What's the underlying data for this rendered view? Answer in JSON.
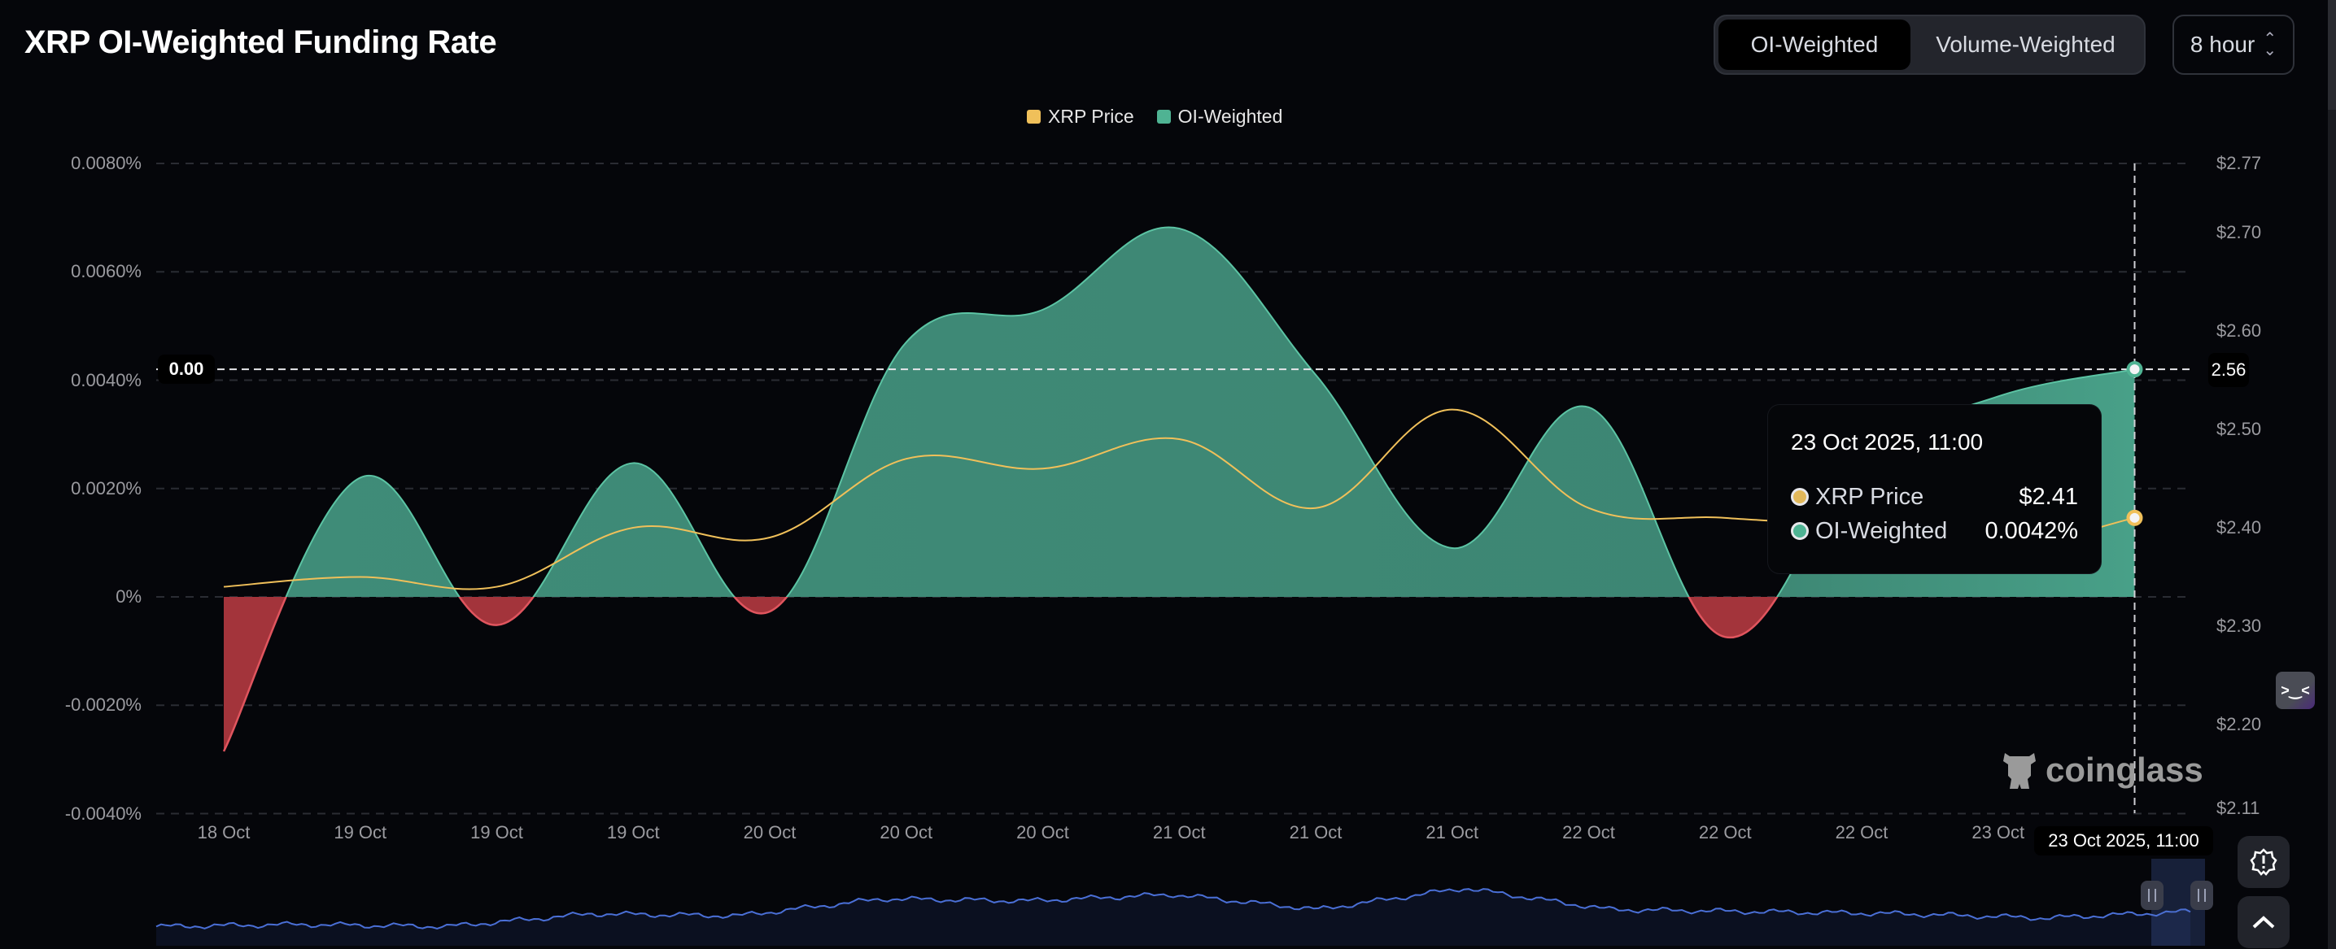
{
  "header": {
    "title": "XRP OI-Weighted Funding Rate"
  },
  "toggle": {
    "options": [
      "OI-Weighted",
      "Volume-Weighted"
    ],
    "selected": "OI-Weighted"
  },
  "interval": {
    "value": "8 hour",
    "icon": "chevron-up-down-icon"
  },
  "colors": {
    "price": "#f0c05a",
    "positive": "#4fb393",
    "negative": "#c5414a",
    "navigator": "#4a6fd6"
  },
  "chart_data": {
    "type": "area",
    "legend": [
      "XRP Price",
      "OI-Weighted"
    ],
    "legend_position": "top-center",
    "grid": true,
    "x": [
      "18 Oct",
      "19 Oct",
      "19 Oct",
      "19 Oct",
      "20 Oct",
      "20 Oct",
      "20 Oct",
      "21 Oct",
      "21 Oct",
      "21 Oct",
      "22 Oct",
      "22 Oct",
      "22 Oct",
      "23 Oct",
      "23 Oct 2025, 11:00"
    ],
    "x_tick_labels": [
      "18 Oct",
      "19 Oct",
      "19 Oct",
      "19 Oct",
      "20 Oct",
      "20 Oct",
      "20 Oct",
      "21 Oct",
      "21 Oct",
      "21 Oct",
      "22 Oct",
      "22 Oct",
      "22 Oct",
      "23 Oct"
    ],
    "series": [
      {
        "name": "OI-Weighted",
        "axis": "left",
        "unit": "%",
        "values": [
          -0.00285,
          0.0022,
          -0.00052,
          0.00247,
          -0.00027,
          0.0047,
          0.0053,
          0.0068,
          0.0041,
          0.0009,
          0.0035,
          -0.00074,
          0.0025,
          0.0037,
          0.0042
        ]
      },
      {
        "name": "XRP Price",
        "axis": "right",
        "unit": "$",
        "values": [
          2.34,
          2.35,
          2.34,
          2.4,
          2.39,
          2.47,
          2.46,
          2.49,
          2.42,
          2.52,
          2.42,
          2.41,
          2.4,
          2.38,
          2.41
        ]
      }
    ],
    "left_axis": {
      "range": [
        -0.004,
        0.008
      ],
      "ticks": [
        "0.0080%",
        "0.0060%",
        "0.0040%",
        "0.0020%",
        "0%",
        "-0.0020%",
        "-0.0040%"
      ],
      "tick_values": [
        0.008,
        0.006,
        0.004,
        0.002,
        0,
        -0.002,
        -0.004
      ]
    },
    "right_axis": {
      "range": [
        2.11,
        2.77
      ],
      "ticks": [
        "$2.77",
        "$2.70",
        "$2.60",
        "$2.50",
        "$2.40",
        "$2.30",
        "$2.20",
        "$2.11"
      ],
      "tick_values": [
        2.77,
        2.7,
        2.6,
        2.5,
        2.4,
        2.3,
        2.2,
        2.11
      ]
    },
    "crosshair": {
      "left_label": "0.00",
      "right_label": "2.56",
      "x_label": "23 Oct 2025, 11:00"
    }
  },
  "tooltip": {
    "date": "23 Oct 2025, 11:00",
    "rows": [
      {
        "label": "XRP Price",
        "value": "$2.41"
      },
      {
        "label": "OI-Weighted",
        "value": "0.0042%"
      }
    ]
  },
  "watermark": {
    "text": "coinglass"
  },
  "side_buttons": {
    "emoji": "smiley-face-icon",
    "alert": "alert-badge-icon",
    "scroll_top": "chevron-up-icon"
  }
}
